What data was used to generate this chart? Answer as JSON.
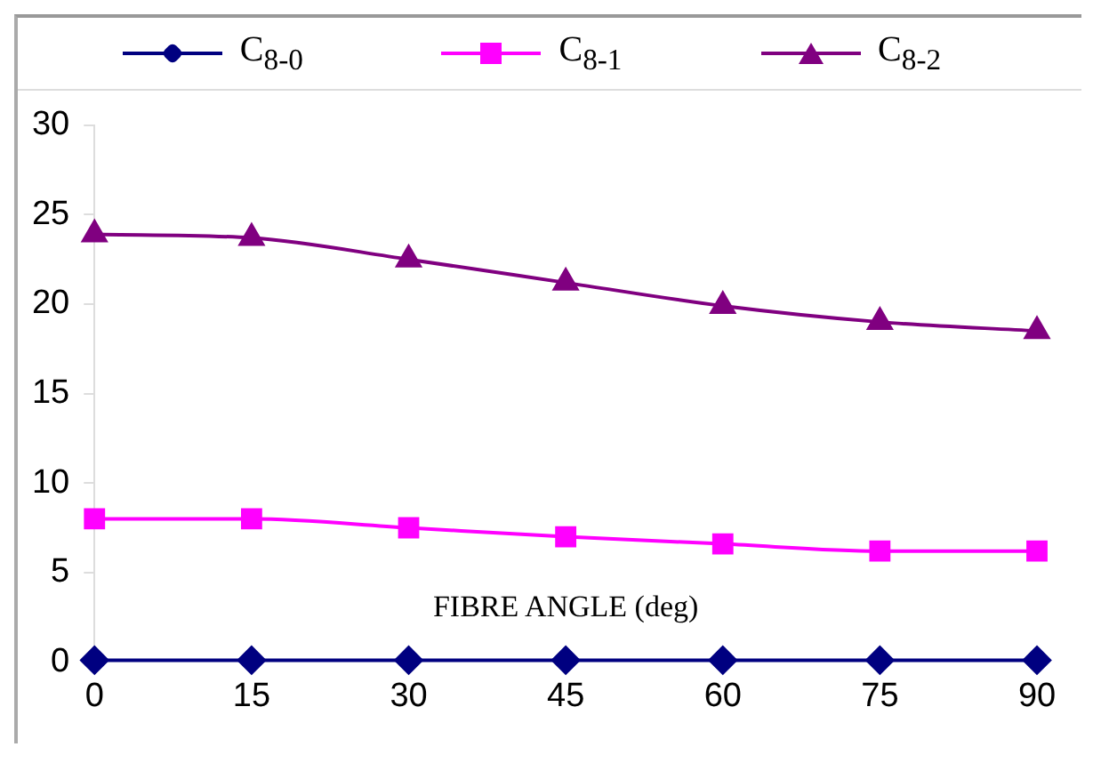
{
  "chart_data": {
    "type": "line",
    "xlabel": "FIBRE ANGLE (deg)",
    "x": [
      0,
      15,
      30,
      45,
      60,
      75,
      90
    ],
    "series": [
      {
        "name": "C$_{8-0}$",
        "color": "#000080",
        "marker": "diamond",
        "values": [
          0.1,
          0.1,
          0.1,
          0.1,
          0.1,
          0.1,
          0.1
        ]
      },
      {
        "name": "C$_{8-1}$",
        "color": "#ff00ff",
        "marker": "square",
        "values": [
          8.0,
          8.0,
          7.5,
          7.0,
          6.6,
          6.2,
          6.2
        ]
      },
      {
        "name": "C$_{8-2}$",
        "color": "#800080",
        "marker": "triangle",
        "values": [
          23.9,
          23.7,
          22.5,
          21.2,
          19.9,
          19.0,
          18.5
        ]
      }
    ],
    "xlim": [
      0,
      90
    ],
    "xticks": [
      0,
      15,
      30,
      45,
      60,
      75,
      90
    ],
    "ylim": [
      0,
      30
    ],
    "yticks": [
      0,
      5,
      10,
      15,
      20,
      25,
      30
    ],
    "grid": false,
    "legend": "top"
  }
}
